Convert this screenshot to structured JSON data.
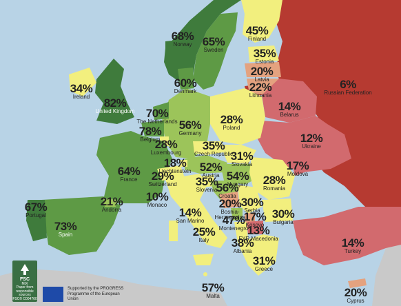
{
  "countries": [
    {
      "name": "Norway",
      "pct": "68%"
    },
    {
      "name": "Sweden",
      "pct": "65%"
    },
    {
      "name": "Finland",
      "pct": "45%"
    },
    {
      "name": "Estonia",
      "pct": "35%"
    },
    {
      "name": "Latvia",
      "pct": "20%"
    },
    {
      "name": "Lithuania",
      "pct": "22%"
    },
    {
      "name": "Russian Federation",
      "pct": "6%"
    },
    {
      "name": "Ireland",
      "pct": "34%"
    },
    {
      "name": "United Kingdom",
      "pct": "82%"
    },
    {
      "name": "Denmark",
      "pct": "60%"
    },
    {
      "name": "The Netherlands",
      "pct": "70%"
    },
    {
      "name": "Belgium",
      "pct": "78%"
    },
    {
      "name": "Luxembourg",
      "pct": "28%"
    },
    {
      "name": "Germany",
      "pct": "56%"
    },
    {
      "name": "Poland",
      "pct": "28%"
    },
    {
      "name": "Belarus",
      "pct": "14%"
    },
    {
      "name": "Ukraine",
      "pct": "12%"
    },
    {
      "name": "Czech Republic",
      "pct": "35%"
    },
    {
      "name": "Slovakia",
      "pct": "31%"
    },
    {
      "name": "Moldova",
      "pct": "17%"
    },
    {
      "name": "France",
      "pct": "64%"
    },
    {
      "name": "Liechtenstein",
      "pct": "18%"
    },
    {
      "name": "Switzerland",
      "pct": "29%"
    },
    {
      "name": "Austria",
      "pct": "52%"
    },
    {
      "name": "Hungary",
      "pct": "54%"
    },
    {
      "name": "Romania",
      "pct": "28%"
    },
    {
      "name": "Slovenia",
      "pct": "35%"
    },
    {
      "name": "Croatia",
      "pct": "56%"
    },
    {
      "name": "Monaco",
      "pct": "10%"
    },
    {
      "name": "Andorra",
      "pct": "21%"
    },
    {
      "name": "Portugal",
      "pct": "67%"
    },
    {
      "name": "Spain",
      "pct": "73%"
    },
    {
      "name": "San Marino",
      "pct": "14%"
    },
    {
      "name": "Bosnia-Herzegovina",
      "pct": "20%"
    },
    {
      "name": "Serbia",
      "pct": "30%"
    },
    {
      "name": "Bulgaria",
      "pct": "30%"
    },
    {
      "name": "Kosovo",
      "pct": "17%"
    },
    {
      "name": "Montenegro",
      "pct": "47%"
    },
    {
      "name": "FYR Macedonia",
      "pct": "13%"
    },
    {
      "name": "Italy",
      "pct": "25%"
    },
    {
      "name": "Albania",
      "pct": "38%"
    },
    {
      "name": "Greece",
      "pct": "31%"
    },
    {
      "name": "Turkey",
      "pct": "14%"
    },
    {
      "name": "Malta",
      "pct": "57%"
    },
    {
      "name": "Cyprus",
      "pct": "20%"
    }
  ],
  "fsc": {
    "brand": "FSC",
    "mix": "MIX",
    "desc": "Paper from responsible sources",
    "code": "FSC® C004760"
  },
  "eu_text": "Supported by the PROGRESS Programme of the European Union",
  "colors": {
    "sea": "#b8d3e6",
    "dark_green": "#3f7b3c",
    "mid_green": "#5e9a45",
    "light_green": "#9cc45a",
    "yellow": "#f2ef7e",
    "peach": "#e4a27f",
    "pink_red": "#d26a6e",
    "red": "#b63a31",
    "grey": "#c9c9c9"
  }
}
